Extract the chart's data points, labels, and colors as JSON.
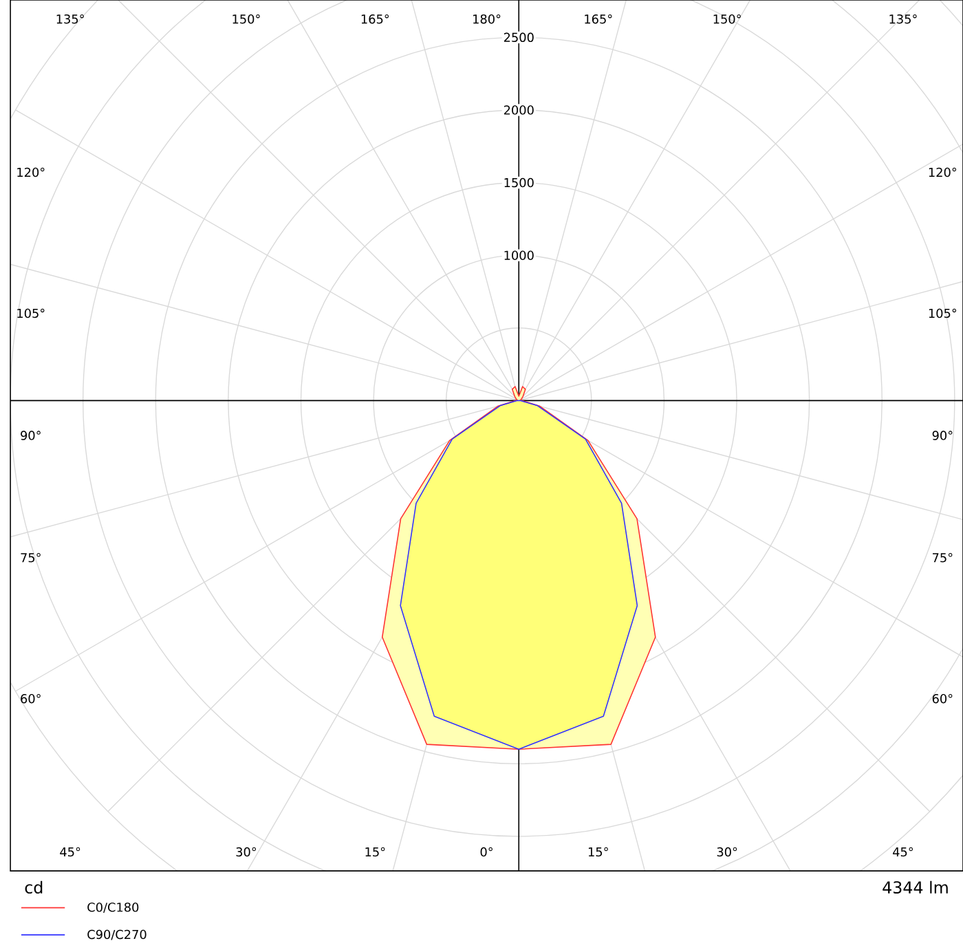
{
  "chart_data": {
    "type": "radar",
    "ylabel": "cd",
    "annotations": [
      "4344 lm"
    ],
    "categories": [
      "180°",
      "165°",
      "150°",
      "135°",
      "120°",
      "105°",
      "90°",
      "75°",
      "60°",
      "45°",
      "30°",
      "15°",
      "0°",
      "15°",
      "30°",
      "45°",
      "60°",
      "75°",
      "90°",
      "105°",
      "120°",
      "135°",
      "150°",
      "165°"
    ],
    "series": [
      {
        "name": "C0/C180",
        "color": "#ff3333",
        "values": [
          30,
          100,
          90,
          40,
          20,
          10,
          20,
          150,
          550,
          1150,
          1880,
          2450,
          2400,
          2450,
          1880,
          1150,
          550,
          150,
          20,
          10,
          20,
          40,
          90,
          100
        ]
      },
      {
        "name": "C90/C270",
        "color": "#3333ff",
        "values": [
          0,
          0,
          0,
          0,
          0,
          0,
          10,
          130,
          530,
          1000,
          1630,
          2250,
          2400,
          2250,
          1630,
          1000,
          530,
          130,
          10,
          0,
          0,
          0,
          0,
          0
        ]
      }
    ],
    "ylim": [
      0,
      4000
    ],
    "yticks": [
      1000,
      1500,
      2000,
      2500
    ],
    "grid": true,
    "legend": "bottom left"
  }
}
